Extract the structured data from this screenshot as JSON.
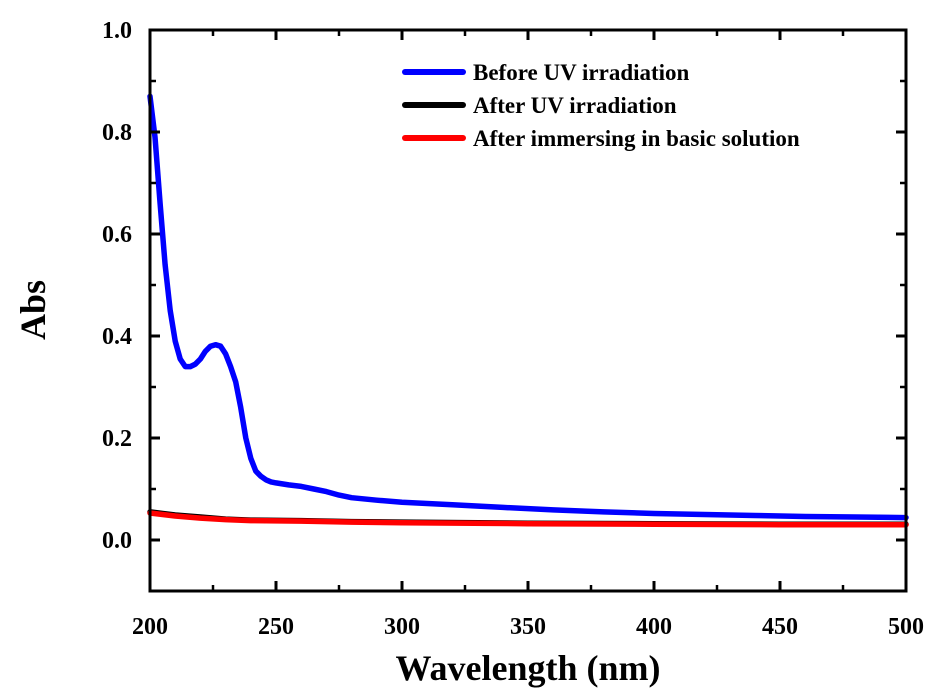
{
  "chart_data": {
    "type": "line",
    "title": "",
    "xlabel": "Wavelength (nm)",
    "ylabel": "Abs",
    "xlim": [
      200,
      500
    ],
    "ylim": [
      -0.1,
      1.0
    ],
    "x_ticks": [
      "200",
      "250",
      "300",
      "350",
      "400",
      "450",
      "500"
    ],
    "y_ticks": [
      "0.0",
      "0.2",
      "0.4",
      "0.6",
      "0.8",
      "1.0"
    ],
    "grid": false,
    "legend_position": "top-right",
    "series": [
      {
        "name": "Before UV irradiation",
        "color": "#0000ff",
        "x": [
          200,
          202,
          204,
          206,
          208,
          210,
          212,
          214,
          216,
          218,
          220,
          222,
          224,
          226,
          228,
          230,
          232,
          234,
          236,
          238,
          240,
          242,
          244,
          246,
          248,
          250,
          255,
          260,
          265,
          270,
          275,
          280,
          290,
          300,
          320,
          340,
          360,
          380,
          400,
          420,
          440,
          460,
          480,
          500
        ],
        "y": [
          0.87,
          0.79,
          0.66,
          0.54,
          0.45,
          0.39,
          0.355,
          0.34,
          0.34,
          0.345,
          0.355,
          0.37,
          0.38,
          0.383,
          0.38,
          0.365,
          0.34,
          0.31,
          0.26,
          0.2,
          0.16,
          0.135,
          0.125,
          0.118,
          0.114,
          0.112,
          0.108,
          0.105,
          0.1,
          0.095,
          0.088,
          0.083,
          0.078,
          0.074,
          0.069,
          0.064,
          0.059,
          0.055,
          0.052,
          0.05,
          0.048,
          0.046,
          0.045,
          0.044
        ]
      },
      {
        "name": "After UV irradiation",
        "color": "#000000",
        "x": [
          200,
          205,
          210,
          220,
          230,
          240,
          260,
          280,
          300,
          350,
          400,
          450,
          500
        ],
        "y": [
          0.055,
          0.052,
          0.049,
          0.045,
          0.041,
          0.039,
          0.038,
          0.036,
          0.035,
          0.033,
          0.032,
          0.031,
          0.031
        ]
      },
      {
        "name": "After immersing in basic solution",
        "color": "#ff0000",
        "x": [
          200,
          205,
          210,
          220,
          230,
          240,
          260,
          280,
          300,
          350,
          400,
          450,
          500
        ],
        "y": [
          0.053,
          0.05,
          0.047,
          0.043,
          0.04,
          0.038,
          0.037,
          0.035,
          0.034,
          0.032,
          0.031,
          0.03,
          0.03
        ]
      }
    ]
  }
}
